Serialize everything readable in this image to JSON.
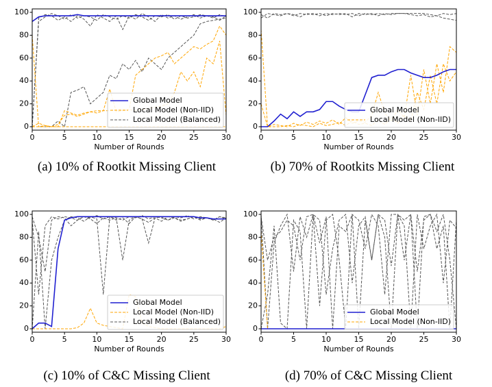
{
  "chart_data": [
    {
      "type": "line",
      "caption": "(a) 10% of Rootkit Missing Client",
      "xlabel": "Number of Rounds",
      "x": [
        0,
        1,
        2,
        3,
        4,
        5,
        6,
        7,
        8,
        9,
        10,
        11,
        12,
        13,
        14,
        15,
        16,
        17,
        18,
        19,
        20,
        21,
        22,
        23,
        24,
        25,
        26,
        27,
        28,
        29,
        30
      ],
      "xlim": [
        0,
        30
      ],
      "ylim": [
        -3,
        103
      ],
      "xticks": [
        0,
        5,
        10,
        15,
        20,
        25,
        30
      ],
      "yticks": [
        0,
        20,
        40,
        60,
        80,
        100
      ],
      "legend": "lower right",
      "series": [
        {
          "name": "Global Model",
          "color": "#1f1fd0",
          "style": "solid",
          "values": [
            92,
            96,
            97,
            97,
            97,
            97,
            97,
            98,
            97,
            97,
            97,
            97,
            97,
            97,
            97,
            97,
            97,
            97,
            97,
            97,
            97,
            97,
            97,
            97,
            97,
            97,
            97,
            97,
            97,
            97,
            97
          ]
        },
        {
          "name": "Local Model (Non-IID)",
          "color": "#ffa500",
          "style": "dashed",
          "values": [
            0,
            0,
            1,
            0,
            0,
            14,
            12,
            10,
            12,
            13,
            14,
            14,
            14,
            15,
            15,
            15,
            45,
            50,
            55,
            60,
            62,
            65,
            55,
            60,
            65,
            70,
            68,
            72,
            75,
            88,
            80
          ]
        },
        {
          "color": "#ffa500",
          "style": "dashed",
          "values": [
            0,
            3,
            1,
            0,
            2,
            10,
            11,
            9,
            11,
            13,
            12,
            14,
            33,
            13,
            14,
            15,
            14,
            15,
            16,
            17,
            18,
            20,
            30,
            48,
            40,
            48,
            35,
            60,
            55,
            75,
            10
          ]
        },
        {
          "color": "#ffa500",
          "style": "dashed",
          "values": [
            80,
            0,
            0,
            0,
            0,
            0,
            0,
            0,
            0,
            0,
            0,
            0,
            0,
            0,
            0,
            0,
            0,
            0,
            0,
            0,
            0,
            0,
            0,
            0,
            0,
            0,
            0,
            0,
            0,
            0,
            0
          ]
        },
        {
          "name": "Local Model (Balanced)",
          "color": "#555555",
          "style": "dashed",
          "values": [
            0,
            0,
            0,
            0,
            5,
            0,
            30,
            32,
            35,
            20,
            25,
            30,
            45,
            42,
            55,
            50,
            58,
            48,
            60,
            55,
            50,
            60,
            65,
            70,
            75,
            80,
            90,
            92,
            93,
            94,
            95
          ]
        },
        {
          "color": "#555555",
          "style": "dashed",
          "values": [
            0,
            95,
            98,
            97,
            93,
            96,
            92,
            97,
            94,
            88,
            98,
            95,
            92,
            97,
            85,
            97,
            94,
            99,
            96,
            92,
            98,
            95,
            97,
            94,
            96,
            98,
            95,
            97,
            96,
            93,
            97
          ]
        },
        {
          "color": "#555555",
          "style": "dashed",
          "values": [
            0,
            92,
            96,
            99,
            97,
            94,
            98,
            95,
            97,
            96,
            93,
            98,
            96,
            94,
            97,
            95,
            98,
            96,
            93,
            97,
            96,
            98,
            94,
            97,
            95,
            96,
            98,
            97,
            95,
            98,
            96
          ]
        }
      ]
    },
    {
      "type": "line",
      "caption": "(b) 70% of Rootkits Missing Client",
      "xlabel": "Number of Rounds",
      "x": [
        0,
        1,
        2,
        3,
        4,
        5,
        6,
        7,
        8,
        9,
        10,
        11,
        12,
        13,
        14,
        15,
        16,
        17,
        18,
        19,
        20,
        21,
        22,
        23,
        24,
        25,
        26,
        27,
        28,
        29,
        30
      ],
      "xlim": [
        0,
        30
      ],
      "ylim": [
        -3,
        103
      ],
      "xticks": [
        0,
        5,
        10,
        15,
        20,
        25,
        30
      ],
      "yticks": [
        0,
        20,
        40,
        60,
        80,
        100
      ],
      "legend": "lower right",
      "series": [
        {
          "name": "Global Model",
          "color": "#1f1fd0",
          "style": "solid",
          "values": [
            0,
            0,
            5,
            11,
            7,
            13,
            9,
            13,
            13,
            15,
            22,
            22,
            18,
            15,
            13,
            13,
            28,
            43,
            45,
            45,
            48,
            50,
            50,
            47,
            45,
            43,
            43,
            45,
            48,
            50,
            50
          ]
        },
        {
          "name": "Local Model (Non-IID)",
          "color": "#ffa500",
          "style": "dashed",
          "values": [
            85,
            0,
            2,
            1,
            0,
            3,
            1,
            4,
            2,
            5,
            3,
            6,
            2,
            8,
            3,
            5,
            4,
            10,
            30,
            12,
            5,
            15,
            8,
            45,
            10,
            50,
            20,
            55,
            30,
            70,
            65
          ]
        },
        {
          "color": "#ffa500",
          "style": "dashed",
          "values": [
            20,
            0,
            0,
            0,
            1,
            0,
            2,
            1,
            0,
            3,
            1,
            2,
            4,
            1,
            5,
            2,
            3,
            1,
            6,
            2,
            8,
            3,
            10,
            5,
            30,
            15,
            45,
            20,
            55,
            40,
            48
          ]
        },
        {
          "color": "#555555",
          "style": "dashed",
          "values": [
            98,
            95,
            99,
            98,
            99,
            97,
            99,
            98,
            99,
            97,
            99,
            98,
            99,
            98,
            99,
            97,
            99,
            98,
            99,
            98,
            99,
            99,
            99,
            98,
            97,
            98,
            96,
            97,
            95,
            94,
            93
          ]
        },
        {
          "color": "#555555",
          "style": "dashed",
          "values": [
            95,
            99,
            98,
            97,
            99,
            98,
            96,
            99,
            98,
            99,
            97,
            99,
            98,
            99,
            96,
            99,
            98,
            99,
            97,
            99,
            98,
            99,
            99,
            99,
            99,
            99,
            98,
            97,
            99,
            98,
            99
          ]
        }
      ]
    },
    {
      "type": "line",
      "caption": "(c) 10% of C&C Missing Client",
      "xlabel": "Number of Rounds",
      "x": [
        0,
        1,
        2,
        3,
        4,
        5,
        6,
        7,
        8,
        9,
        10,
        11,
        12,
        13,
        14,
        15,
        16,
        17,
        18,
        19,
        20,
        21,
        22,
        23,
        24,
        25,
        26,
        27,
        28,
        29,
        30
      ],
      "xlim": [
        0,
        30
      ],
      "ylim": [
        -3,
        103
      ],
      "xticks": [
        0,
        5,
        10,
        15,
        20,
        25,
        30
      ],
      "yticks": [
        0,
        20,
        40,
        60,
        80,
        100
      ],
      "legend": "lower right",
      "series": [
        {
          "name": "Global Model",
          "color": "#1f1fd0",
          "style": "solid",
          "values": [
            0,
            5,
            5,
            2,
            70,
            95,
            97,
            98,
            98,
            98,
            98,
            98,
            98,
            98,
            98,
            98,
            98,
            98,
            98,
            98,
            98,
            98,
            98,
            98,
            98,
            98,
            97,
            97,
            96,
            96,
            96
          ]
        },
        {
          "name": "Local Model (Non-IID)",
          "color": "#ffa500",
          "style": "dashed",
          "values": [
            0,
            0,
            0,
            0,
            0,
            0,
            0,
            1,
            5,
            18,
            5,
            3,
            2,
            1,
            0,
            30,
            28,
            5,
            2,
            1,
            0,
            0,
            0,
            0,
            0,
            0,
            0,
            0,
            0,
            0,
            2
          ]
        },
        {
          "name": "Local Model (Balanced)",
          "color": "#555555",
          "style": "dashed",
          "values": [
            98,
            80,
            50,
            95,
            98,
            97,
            90,
            95,
            98,
            96,
            92,
            97,
            95,
            97,
            60,
            95,
            98,
            96,
            93,
            97,
            98,
            95,
            97,
            94,
            96,
            98,
            95,
            97,
            96,
            93,
            97
          ]
        },
        {
          "color": "#555555",
          "style": "dashed",
          "values": [
            0,
            85,
            0,
            60,
            80,
            95,
            98,
            97,
            94,
            98,
            96,
            30,
            98,
            95,
            97,
            92,
            98,
            96,
            75,
            97,
            94,
            98,
            97,
            95,
            96,
            98,
            96,
            97,
            95,
            98,
            96
          ]
        },
        {
          "color": "#555555",
          "style": "dashed",
          "values": [
            95,
            30,
            90,
            98,
            96,
            98,
            97,
            95,
            98,
            97,
            99,
            96,
            98,
            97,
            95,
            98,
            97,
            99,
            96,
            98,
            97,
            95,
            98,
            97,
            99,
            96,
            98,
            97,
            95,
            98,
            97
          ]
        }
      ]
    },
    {
      "type": "line",
      "caption": "(d) 70% of C&C Missing Client",
      "xlabel": "Number of Rounds",
      "x": [
        0,
        1,
        2,
        3,
        4,
        5,
        6,
        7,
        8,
        9,
        10,
        11,
        12,
        13,
        14,
        15,
        16,
        17,
        18,
        19,
        20,
        21,
        22,
        23,
        24,
        25,
        26,
        27,
        28,
        29,
        30
      ],
      "xlim": [
        0,
        30
      ],
      "ylim": [
        -3,
        103
      ],
      "xticks": [
        0,
        5,
        10,
        15,
        20,
        25,
        30
      ],
      "yticks": [
        0,
        20,
        40,
        60,
        80,
        100
      ],
      "legend": "lower right",
      "series": [
        {
          "name": "Global Model",
          "color": "#1f1fd0",
          "style": "solid",
          "values": [
            0,
            0,
            0,
            0,
            0,
            0,
            0,
            0,
            0,
            0,
            0,
            0,
            0,
            0,
            0,
            0,
            0,
            0,
            0,
            0,
            0,
            0,
            0,
            0,
            0,
            0,
            0,
            0,
            0,
            0,
            0
          ]
        },
        {
          "name": "Local Model (Non-IID)",
          "color": "#ffa500",
          "style": "dashed",
          "values": [
            85,
            0,
            0,
            0,
            0,
            0,
            0,
            0,
            0,
            0,
            0,
            0,
            0,
            0,
            0,
            0,
            0,
            0,
            0,
            0,
            0,
            0,
            0,
            0,
            0,
            0,
            0,
            0,
            0,
            0,
            0
          ]
        },
        {
          "color": "#555555",
          "style": "dashed",
          "values": [
            98,
            60,
            80,
            85,
            95,
            90,
            60,
            98,
            100,
            95,
            30,
            70,
            95,
            100,
            40,
            90,
            98,
            60,
            100,
            95,
            55,
            100,
            90,
            0,
            100,
            70,
            90,
            100,
            40,
            95,
            88
          ]
        },
        {
          "color": "#555555",
          "style": "dashed",
          "values": [
            100,
            0,
            75,
            90,
            100,
            50,
            98,
            80,
            100,
            20,
            95,
            100,
            60,
            0,
            100,
            95,
            70,
            100,
            90,
            30,
            100,
            100,
            60,
            100,
            50,
            95,
            100,
            70,
            90,
            0,
            95
          ]
        },
        {
          "color": "#555555",
          "style": "dashed",
          "values": [
            0,
            30,
            90,
            5,
            0,
            95,
            85,
            0,
            100,
            75,
            98,
            0,
            90,
            85,
            100,
            0,
            95,
            60,
            100,
            80,
            0,
            100,
            95,
            100,
            0,
            98,
            100,
            85,
            100,
            60,
            0
          ]
        }
      ]
    }
  ]
}
